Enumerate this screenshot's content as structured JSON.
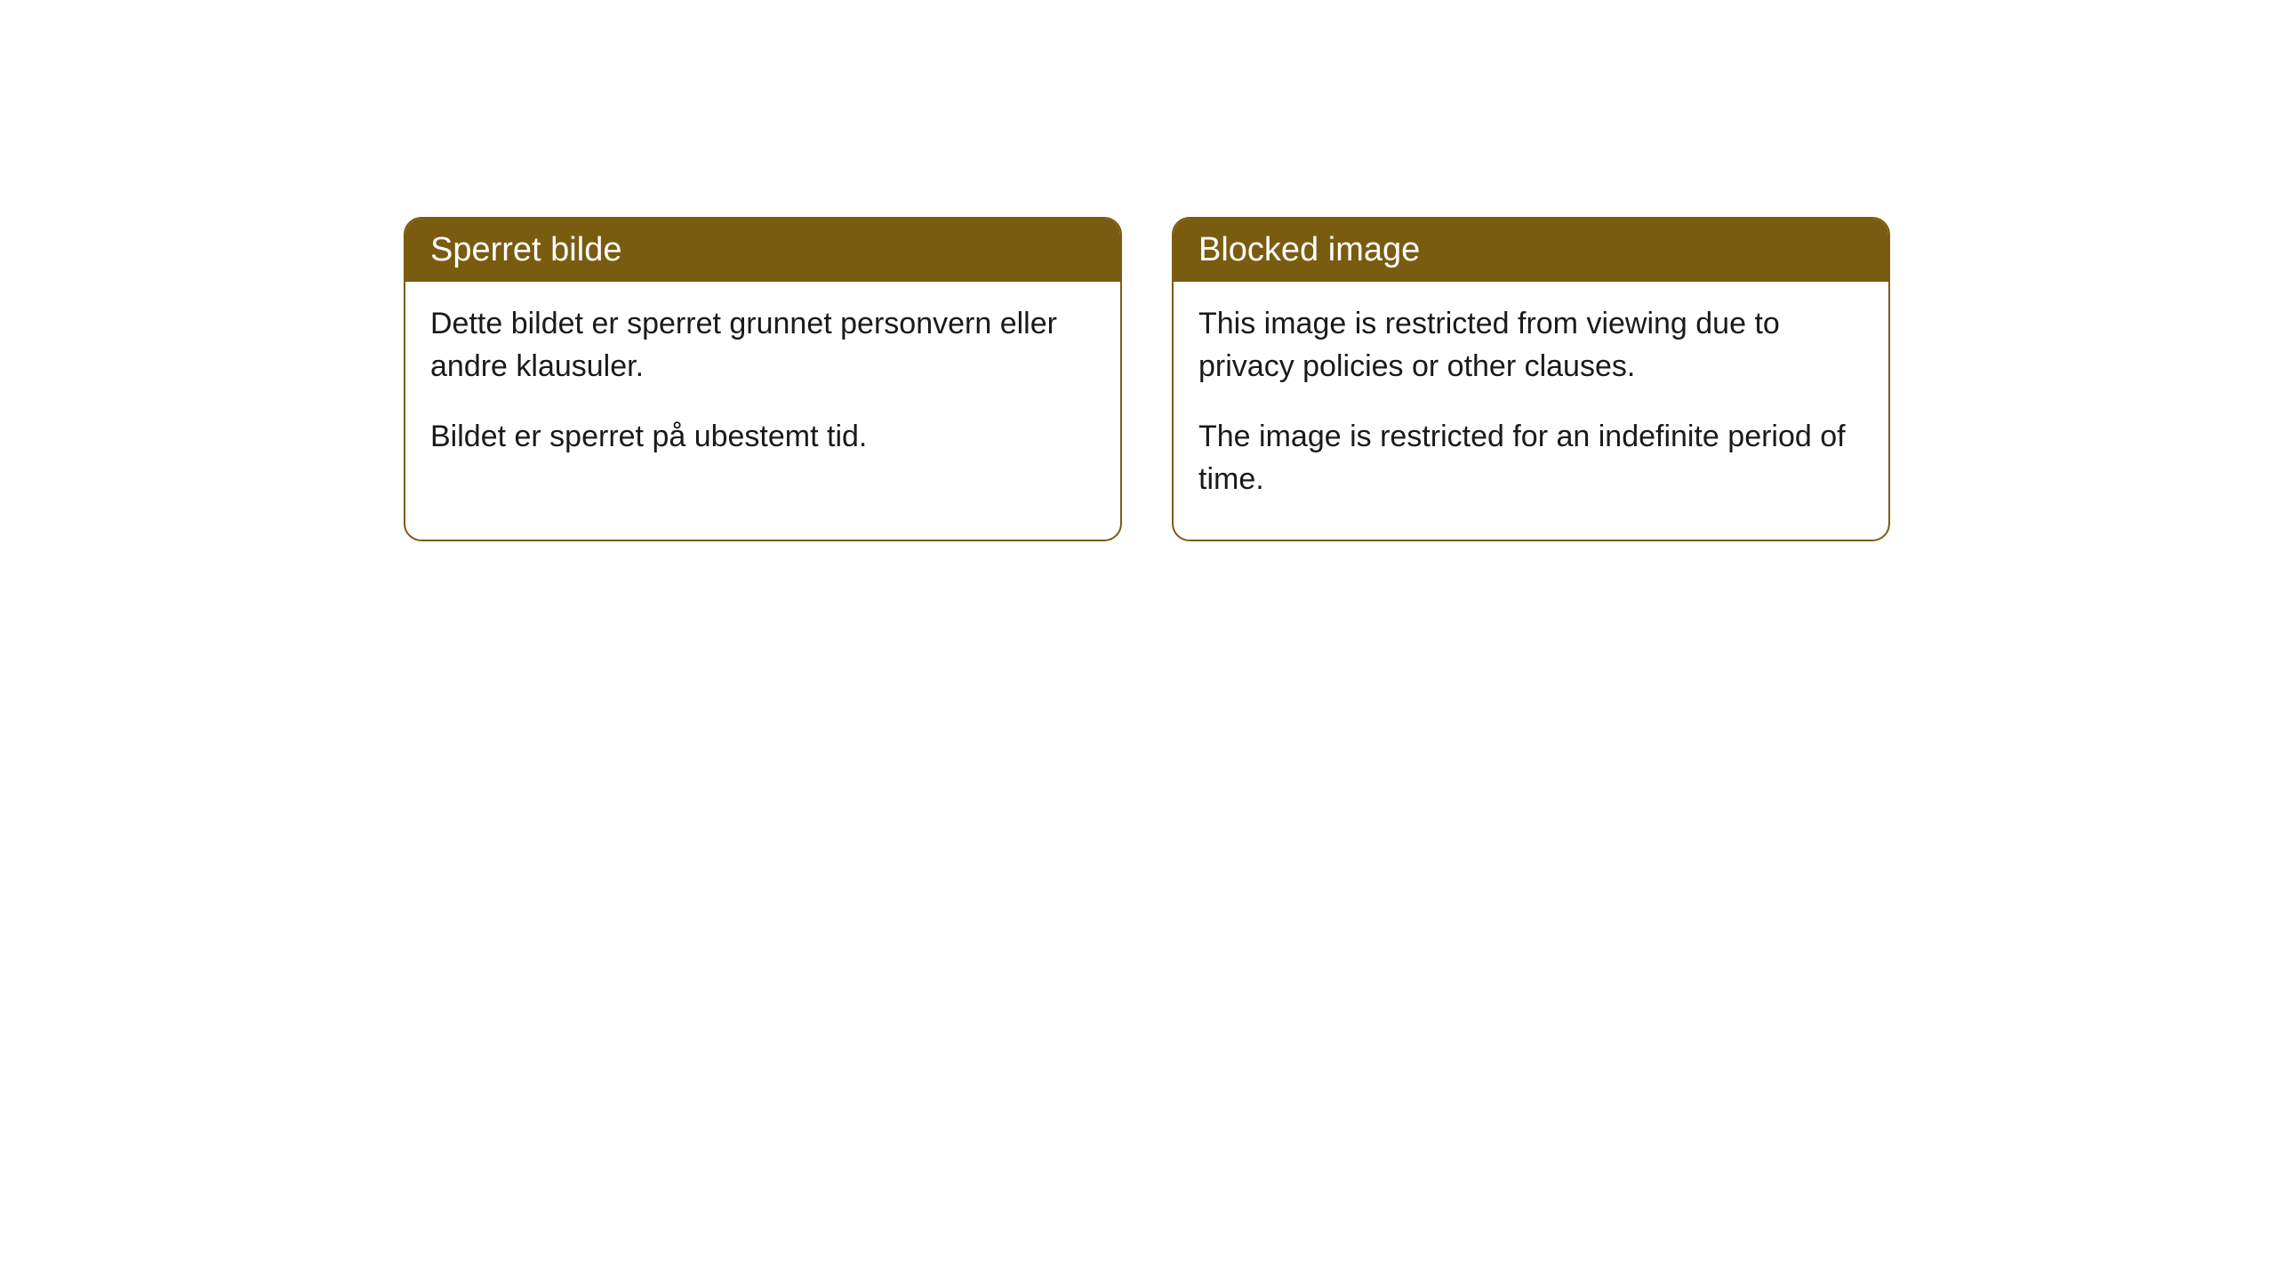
{
  "cards": [
    {
      "title": "Sperret bilde",
      "paragraph1": "Dette bildet er sperret grunnet personvern eller andre klausuler.",
      "paragraph2": "Bildet er sperret på ubestemt tid."
    },
    {
      "title": "Blocked image",
      "paragraph1": "This image is restricted from viewing due to privacy policies or other clauses.",
      "paragraph2": "The image is restricted for an indefinite period of time."
    }
  ],
  "styling": {
    "header_background_color": "#7a5c10",
    "header_text_color": "#ffffff",
    "border_color": "#7a5c10",
    "body_background_color": "#ffffff",
    "body_text_color": "#1a1a1a",
    "border_radius": 20,
    "header_fontsize": 38,
    "body_fontsize": 34
  }
}
